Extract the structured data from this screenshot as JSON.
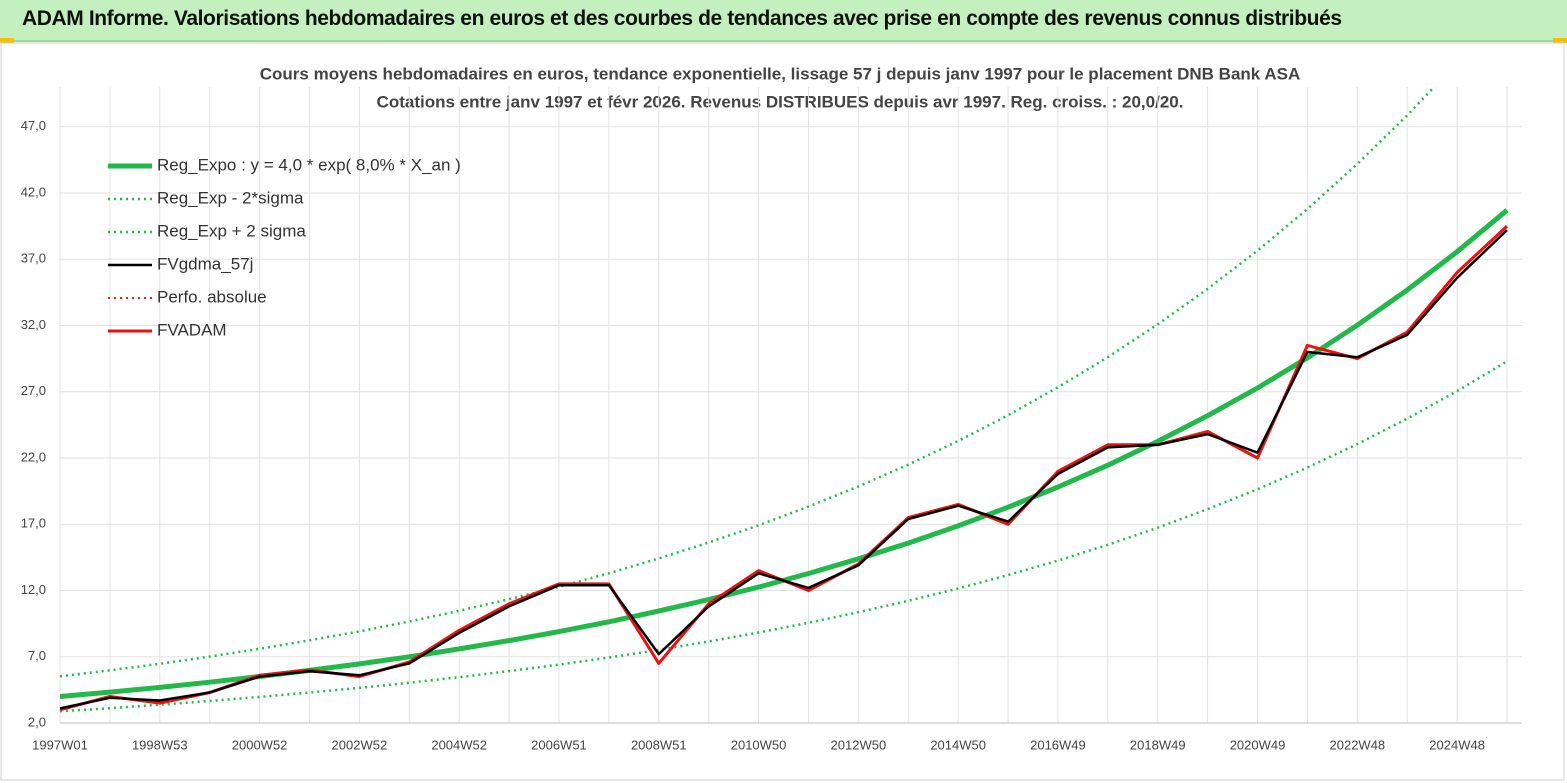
{
  "header": {
    "title": "ADAM Informe. Valorisations hebdomadaires en euros et des courbes de tendances avec prise en compte des revenus connus distribués"
  },
  "chart_data": {
    "type": "line",
    "title": "Cours moyens hebdomadaires en euros, tendance exponentielle, lissage 57 j depuis janv 1997 pour le placement DNB Bank ASA",
    "subtitle": "Cotations entre janv 1997 et févr 2026. Revenus DISTRIBUES depuis avr 1997. Reg. croiss. : 20,0/20.",
    "categories": [
      "1997W01",
      null,
      "1998W53",
      null,
      "2000W52",
      null,
      "2002W52",
      null,
      "2004W52",
      null,
      "2006W51",
      null,
      "2008W51",
      null,
      "2010W50",
      null,
      "2012W50",
      null,
      "2014W50",
      null,
      "2016W49",
      null,
      "2018W49",
      null,
      "2020W49",
      null,
      "2022W48",
      null,
      "2024W48",
      null
    ],
    "ylim": [
      2,
      50
    ],
    "yticks": [
      {
        "value": 2,
        "label": "2,0"
      },
      {
        "value": 7,
        "label": "7,0"
      },
      {
        "value": 12,
        "label": "12,0"
      },
      {
        "value": 17,
        "label": "17,0"
      },
      {
        "value": 22,
        "label": "22,0"
      },
      {
        "value": 27,
        "label": "27,0"
      },
      {
        "value": 32,
        "label": "32,0"
      },
      {
        "value": 37,
        "label": "37,0"
      },
      {
        "value": 42,
        "label": "42,0"
      },
      {
        "value": 47,
        "label": "47,0"
      }
    ],
    "grid": true,
    "legend": "upper left",
    "series": [
      {
        "name": "Reg_Expo : y = 4,0 * exp( 8,0% *  X_an )",
        "color": "#22b84a",
        "style": "solid",
        "width": 5,
        "values": [
          4.0,
          4.33,
          4.69,
          5.08,
          5.51,
          5.97,
          6.46,
          7.0,
          7.59,
          8.22,
          8.9,
          9.64,
          10.45,
          11.32,
          12.26,
          13.28,
          14.39,
          15.58,
          16.88,
          18.29,
          19.81,
          21.46,
          23.25,
          25.19,
          27.28,
          29.56,
          32.02,
          34.68,
          37.57,
          40.7
        ]
      },
      {
        "name": "Reg_Exp - 2*sigma",
        "color": "#22b84a",
        "style": "dotted",
        "width": 2.5,
        "values": [
          2.88,
          3.12,
          3.38,
          3.66,
          3.97,
          4.3,
          4.65,
          5.04,
          5.46,
          5.92,
          6.41,
          6.94,
          7.52,
          8.15,
          8.83,
          9.56,
          10.36,
          11.22,
          12.15,
          13.17,
          14.26,
          15.45,
          16.74,
          18.14,
          19.64,
          21.28,
          23.05,
          24.97,
          27.05,
          29.3
        ]
      },
      {
        "name": "Reg_Exp + 2 sigma",
        "color": "#22b84a",
        "style": "dotted",
        "width": 2.5,
        "values": [
          5.52,
          5.98,
          6.47,
          7.01,
          7.6,
          8.24,
          8.91,
          9.66,
          10.47,
          11.34,
          12.28,
          13.3,
          14.42,
          15.62,
          16.92,
          18.33,
          19.86,
          21.5,
          23.29,
          25.23,
          27.34,
          29.61,
          32.09,
          34.76,
          37.65,
          40.79,
          44.19,
          47.86,
          51.85,
          56.17
        ]
      },
      {
        "name": "FVgdma_57j",
        "color": "#000000",
        "style": "solid",
        "width": 2.5,
        "values": [
          3.1,
          3.9,
          3.7,
          4.3,
          5.5,
          5.9,
          5.6,
          6.5,
          8.8,
          10.8,
          12.4,
          12.4,
          7.2,
          10.8,
          13.3,
          12.2,
          13.9,
          17.4,
          18.4,
          17.2,
          20.8,
          22.8,
          23.0,
          23.8,
          22.4,
          30.0,
          29.6,
          31.3,
          35.6,
          39.2
        ]
      },
      {
        "name": "Perfo. absolue",
        "color": "#e02020",
        "style": "dotted",
        "width": 2,
        "values": [
          3.0,
          4.0,
          3.5,
          4.3,
          5.6,
          6.0,
          5.5,
          6.6,
          9.0,
          11.0,
          12.5,
          12.5,
          6.5,
          11.0,
          13.5,
          12.0,
          14.0,
          17.5,
          18.5,
          17.0,
          21.0,
          23.0,
          23.0,
          24.0,
          22.0,
          30.5,
          29.5,
          31.5,
          36.0,
          39.5
        ]
      },
      {
        "name": "FVADAM",
        "color": "#ee1111",
        "style": "solid",
        "width": 3,
        "values": [
          3.0,
          4.0,
          3.5,
          4.3,
          5.6,
          6.0,
          5.5,
          6.6,
          9.0,
          11.0,
          12.5,
          12.5,
          6.5,
          11.0,
          13.5,
          12.0,
          14.0,
          17.5,
          18.5,
          17.0,
          21.0,
          23.0,
          23.0,
          24.0,
          22.0,
          30.5,
          29.5,
          31.5,
          36.0,
          39.5
        ]
      }
    ]
  }
}
